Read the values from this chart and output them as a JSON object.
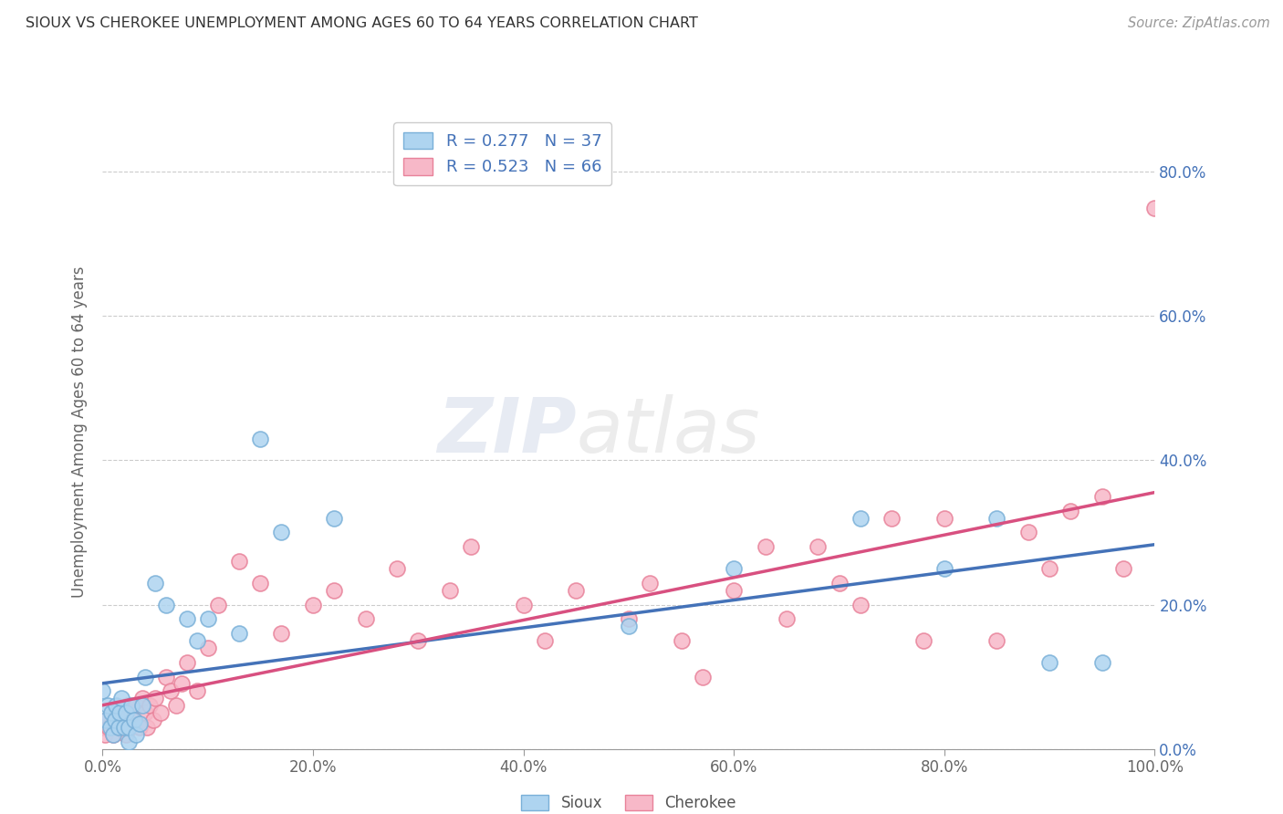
{
  "title": "SIOUX VS CHEROKEE UNEMPLOYMENT AMONG AGES 60 TO 64 YEARS CORRELATION CHART",
  "source": "Source: ZipAtlas.com",
  "ylabel": "Unemployment Among Ages 60 to 64 years",
  "sioux_label": "Sioux",
  "cherokee_label": "Cherokee",
  "sioux_R": 0.277,
  "sioux_N": 37,
  "cherokee_R": 0.523,
  "cherokee_N": 66,
  "sioux_color": "#aed4f0",
  "cherokee_color": "#f7b8c8",
  "sioux_edge_color": "#7ab0d8",
  "cherokee_edge_color": "#e8829a",
  "sioux_line_color": "#4472b8",
  "cherokee_line_color": "#d85080",
  "axis_label_color": "#4472b8",
  "background_color": "#ffffff",
  "watermark_zip": "ZIP",
  "watermark_atlas": "atlas",
  "xlim": [
    0.0,
    1.0
  ],
  "ylim": [
    0.0,
    0.88
  ],
  "xticks": [
    0.0,
    0.2,
    0.4,
    0.6,
    0.8,
    1.0
  ],
  "yticks": [
    0.0,
    0.2,
    0.4,
    0.6,
    0.8
  ],
  "sioux_x": [
    0.0,
    0.003,
    0.005,
    0.007,
    0.008,
    0.01,
    0.012,
    0.013,
    0.015,
    0.016,
    0.018,
    0.02,
    0.022,
    0.025,
    0.025,
    0.027,
    0.03,
    0.032,
    0.035,
    0.038,
    0.04,
    0.05,
    0.06,
    0.08,
    0.09,
    0.1,
    0.13,
    0.15,
    0.17,
    0.22,
    0.5,
    0.6,
    0.72,
    0.8,
    0.85,
    0.9,
    0.95
  ],
  "sioux_y": [
    0.08,
    0.04,
    0.06,
    0.03,
    0.05,
    0.02,
    0.04,
    0.06,
    0.03,
    0.05,
    0.07,
    0.03,
    0.05,
    0.01,
    0.03,
    0.06,
    0.04,
    0.02,
    0.035,
    0.06,
    0.1,
    0.23,
    0.2,
    0.18,
    0.15,
    0.18,
    0.16,
    0.43,
    0.3,
    0.32,
    0.17,
    0.25,
    0.32,
    0.25,
    0.32,
    0.12,
    0.12
  ],
  "cherokee_x": [
    0.0,
    0.002,
    0.004,
    0.006,
    0.008,
    0.01,
    0.012,
    0.014,
    0.016,
    0.018,
    0.02,
    0.022,
    0.024,
    0.025,
    0.027,
    0.03,
    0.032,
    0.035,
    0.038,
    0.04,
    0.042,
    0.045,
    0.048,
    0.05,
    0.055,
    0.06,
    0.065,
    0.07,
    0.075,
    0.08,
    0.09,
    0.1,
    0.11,
    0.13,
    0.15,
    0.17,
    0.2,
    0.22,
    0.25,
    0.28,
    0.3,
    0.33,
    0.35,
    0.4,
    0.42,
    0.45,
    0.5,
    0.52,
    0.55,
    0.57,
    0.6,
    0.63,
    0.65,
    0.68,
    0.7,
    0.72,
    0.75,
    0.78,
    0.8,
    0.85,
    0.88,
    0.9,
    0.92,
    0.95,
    0.97,
    1.0
  ],
  "cherokee_y": [
    0.03,
    0.02,
    0.04,
    0.03,
    0.05,
    0.02,
    0.04,
    0.03,
    0.05,
    0.03,
    0.04,
    0.02,
    0.06,
    0.03,
    0.05,
    0.04,
    0.06,
    0.03,
    0.07,
    0.05,
    0.03,
    0.06,
    0.04,
    0.07,
    0.05,
    0.1,
    0.08,
    0.06,
    0.09,
    0.12,
    0.08,
    0.14,
    0.2,
    0.26,
    0.23,
    0.16,
    0.2,
    0.22,
    0.18,
    0.25,
    0.15,
    0.22,
    0.28,
    0.2,
    0.15,
    0.22,
    0.18,
    0.23,
    0.15,
    0.1,
    0.22,
    0.28,
    0.18,
    0.28,
    0.23,
    0.2,
    0.32,
    0.15,
    0.32,
    0.15,
    0.3,
    0.25,
    0.33,
    0.35,
    0.25,
    0.75
  ]
}
